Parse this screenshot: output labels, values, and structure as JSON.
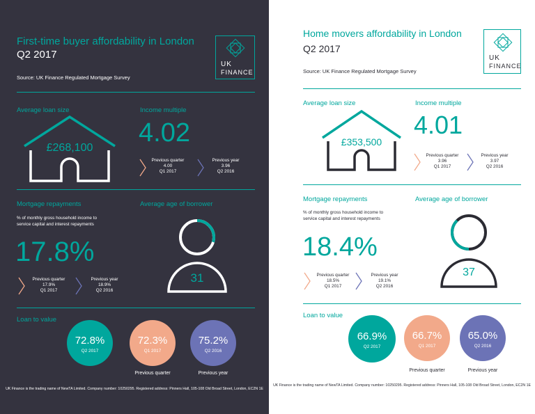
{
  "left": {
    "title": "First-time buyer affordability in London",
    "quarter": "Q2 2017",
    "source": "Source: UK Finance Regulated Mortgage Survey",
    "logo": {
      "line1": "UK",
      "line2": "FINANCE"
    },
    "loan": {
      "label": "Average loan size",
      "value": "£268,100"
    },
    "income": {
      "label": "Income multiple",
      "value": "4.02",
      "prev_q": {
        "title": "Previous quarter",
        "value": "4.00",
        "date": "Q1 2017"
      },
      "prev_y": {
        "title": "Previous year",
        "value": "3.96",
        "date": "Q2 2016"
      }
    },
    "repay": {
      "label": "Mortgage repayments",
      "desc1": "% of monthly gross household income to",
      "desc2": "service capital and interest repayments",
      "value": "17.8%",
      "prev_q": {
        "title": "Previous quarter",
        "value": "17.9%",
        "date": "Q1 2017"
      },
      "prev_y": {
        "title": "Previous year",
        "value": "18.9%",
        "date": "Q2 2016"
      }
    },
    "age": {
      "label": "Average age of borrower",
      "value": "31"
    },
    "ltv": {
      "label": "Loan to value",
      "items": [
        {
          "value": "72.8%",
          "date": "Q2 2017",
          "caption": ""
        },
        {
          "value": "72.3%",
          "date": "Q1 2017",
          "caption": "Previous quarter"
        },
        {
          "value": "75.2%",
          "date": "Q2 2016",
          "caption": "Previous year"
        }
      ]
    },
    "footer": "UK Finance is the trading name of NewTA Limited. Company number: 10250295. Registered address: Pinners Hall, 105-108 Old Broad Street, London, EC2N 1E"
  },
  "right": {
    "title": "Home movers affordability in London",
    "quarter": "Q2 2017",
    "source": "Source: UK Finance Regulated Mortgage Survey",
    "logo": {
      "line1": "UK",
      "line2": "FINANCE"
    },
    "loan": {
      "label": "Average loan size",
      "value": "£353,500"
    },
    "income": {
      "label": "Income multiple",
      "value": "4.01",
      "prev_q": {
        "title": "Previous quarter",
        "value": "3.96",
        "date": "Q1 2017"
      },
      "prev_y": {
        "title": "Previous year",
        "value": "3.97",
        "date": "Q2 2016"
      }
    },
    "repay": {
      "label": "Mortgage repayments",
      "desc1": "% of monthly gross household income to",
      "desc2": "service capital and interest repayments",
      "value": "18.4%",
      "prev_q": {
        "title": "Previous quarter",
        "value": "18.5%",
        "date": "Q1 2017"
      },
      "prev_y": {
        "title": "Previous year",
        "value": "19.1%",
        "date": "Q2 2016"
      }
    },
    "age": {
      "label": "Average age of borrower",
      "value": "37"
    },
    "ltv": {
      "label": "Loan to value",
      "items": [
        {
          "value": "66.9%",
          "date": "Q2 2017",
          "caption": ""
        },
        {
          "value": "66.7%",
          "date": "Q1 2017",
          "caption": "Previous quarter"
        },
        {
          "value": "65.0%",
          "date": "Q2 2016",
          "caption": "Previous year"
        }
      ]
    },
    "footer": "UK Finance is the trading name of NewTA Limited. Company number: 10250295. Registered address: Pinners Hall, 105-108 Old Broad Street, London, EC2N 1E"
  },
  "colors": {
    "teal": "#00a79d",
    "peach": "#f2a98a",
    "blue": "#6c73b6",
    "dark": "#34333f",
    "arrow_orange": "#f2a98a",
    "arrow_blue": "#6c73b6"
  },
  "icons": [
    "uk-finance-logo-icon",
    "house-icon",
    "person-icon",
    "chevron-right-icon"
  ]
}
